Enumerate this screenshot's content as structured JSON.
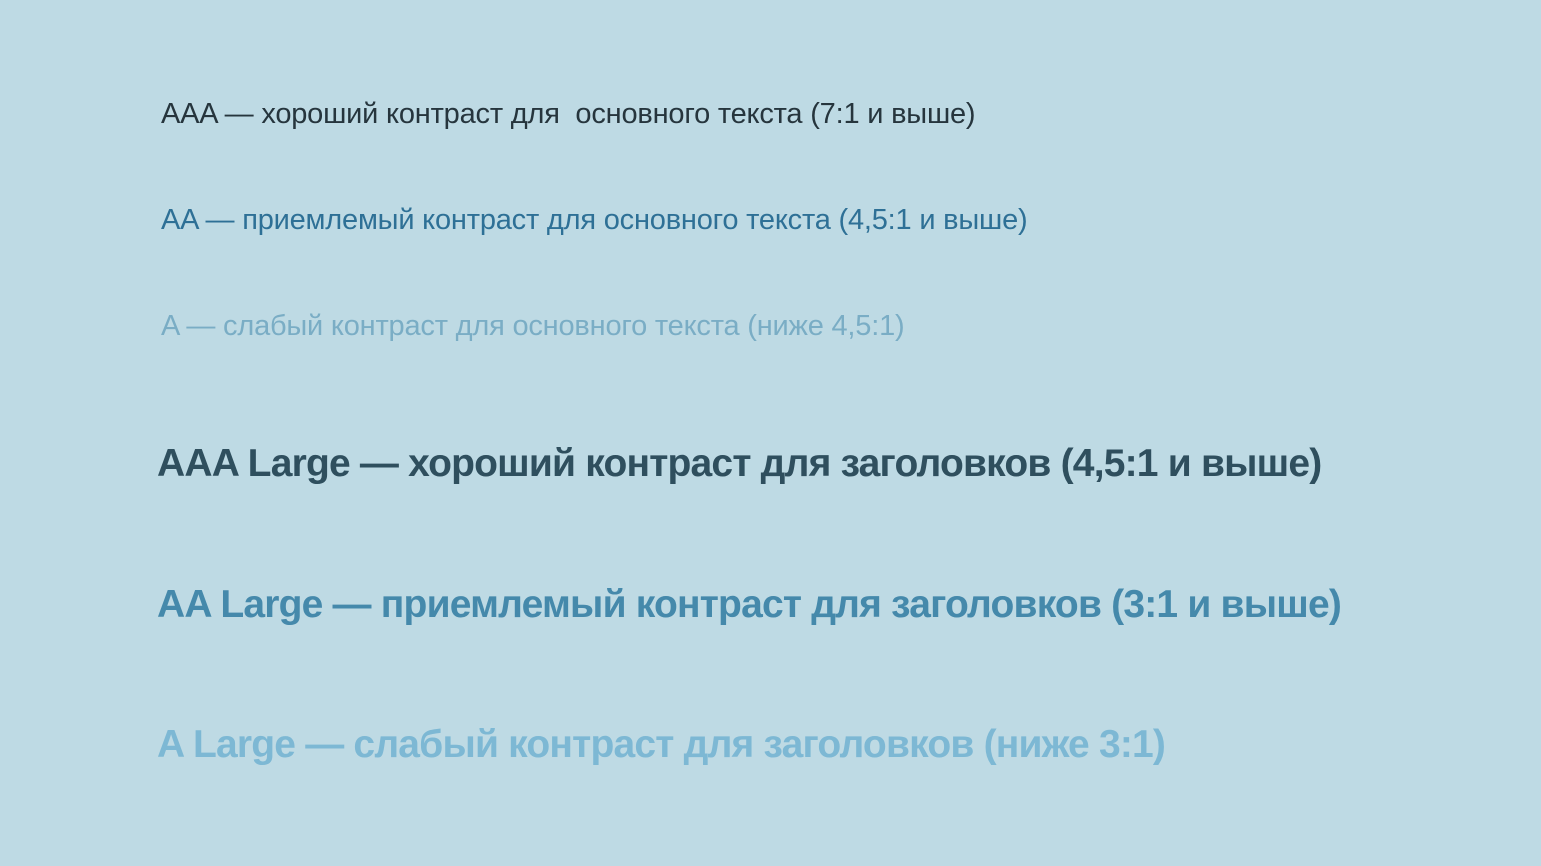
{
  "page": {
    "background_color": "#bedae4"
  },
  "contrast_demo": {
    "lines": [
      {
        "level": "AAA",
        "text": "AAA — хороший контраст для  основного текста (7:1 и выше)",
        "color": "#26353d",
        "style": "normal"
      },
      {
        "level": "AA",
        "text": "AA — приемлемый контраст для основного текста (4,5:1 и выше)",
        "color": "#2e7096",
        "style": "normal"
      },
      {
        "level": "A",
        "text": "A — слабый контраст для основного текста (ниже 4,5:1)",
        "color": "#7aadc5",
        "style": "normal"
      },
      {
        "level": "AAA Large",
        "text": "AAA Large — хороший контраст для заголовков (4,5:1 и выше)",
        "color": "#2f4f5e",
        "style": "large"
      },
      {
        "level": "AA Large",
        "text": "AA Large — приемлемый контраст для заголовков (3:1 и выше)",
        "color": "#4589ab",
        "style": "large"
      },
      {
        "level": "A Large",
        "text": "A Large — слабый контраст для заголовков (ниже 3:1)",
        "color": "#7db8d4",
        "style": "large"
      }
    ]
  }
}
